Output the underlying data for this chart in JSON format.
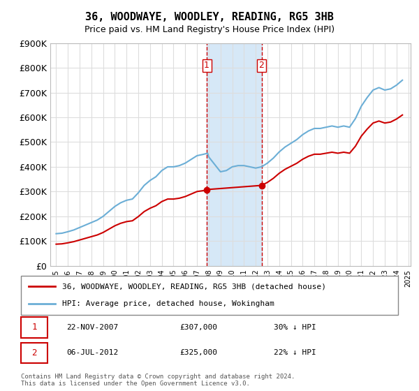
{
  "title": "36, WOODWAYE, WOODLEY, READING, RG5 3HB",
  "subtitle": "Price paid vs. HM Land Registry's House Price Index (HPI)",
  "ylabel_ticks": [
    "£0",
    "£100K",
    "£200K",
    "£300K",
    "£400K",
    "£500K",
    "£600K",
    "£700K",
    "£800K",
    "£900K"
  ],
  "ylim": [
    0,
    900000
  ],
  "hpi_color": "#6baed6",
  "price_color": "#cc0000",
  "sale1_date": "22-NOV-2007",
  "sale1_price": 307000,
  "sale1_pct": "30%",
  "sale2_date": "06-JUL-2012",
  "sale2_price": 325000,
  "sale2_pct": "22%",
  "legend_label1": "36, WOODWAYE, WOODLEY, READING, RG5 3HB (detached house)",
  "legend_label2": "HPI: Average price, detached house, Wokingham",
  "footer": "Contains HM Land Registry data © Crown copyright and database right 2024.\nThis data is licensed under the Open Government Licence v3.0.",
  "shaded_region_color": "#d6e8f7",
  "vline_color": "#cc0000",
  "background_color": "#ffffff",
  "grid_color": "#dddddd"
}
